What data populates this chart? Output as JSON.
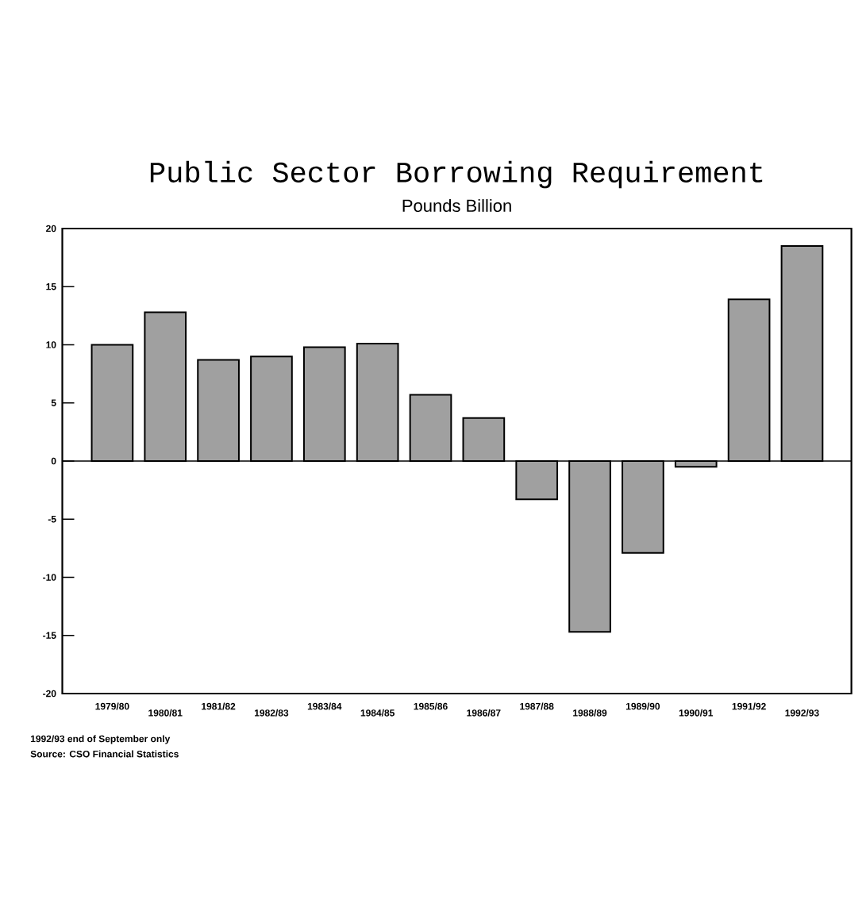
{
  "chart_data": {
    "type": "bar",
    "title": "Public Sector Borrowing Requirement",
    "subtitle": "Pounds Billion",
    "categories": [
      "1979/80",
      "1980/81",
      "1981/82",
      "1982/83",
      "1983/84",
      "1984/85",
      "1985/86",
      "1986/87",
      "1987/88",
      "1988/89",
      "1989/90",
      "1990/91",
      "1991/92",
      "1992/93"
    ],
    "values": [
      10.0,
      12.8,
      8.7,
      9.0,
      9.8,
      10.1,
      5.7,
      3.7,
      -3.3,
      -14.7,
      -7.9,
      -0.5,
      13.9,
      18.5
    ],
    "color": "#a0a0a0",
    "ylim": [
      -20,
      20
    ],
    "yticks": [
      -20,
      -15,
      -10,
      -5,
      0,
      5,
      10,
      15,
      20
    ],
    "ref_lines": [
      {
        "axis": "y",
        "value": 0,
        "color": "#000000"
      }
    ],
    "grid": false,
    "annotations": [
      "1992/93 end of September only",
      "Source: CSO Financial Statistics"
    ]
  }
}
